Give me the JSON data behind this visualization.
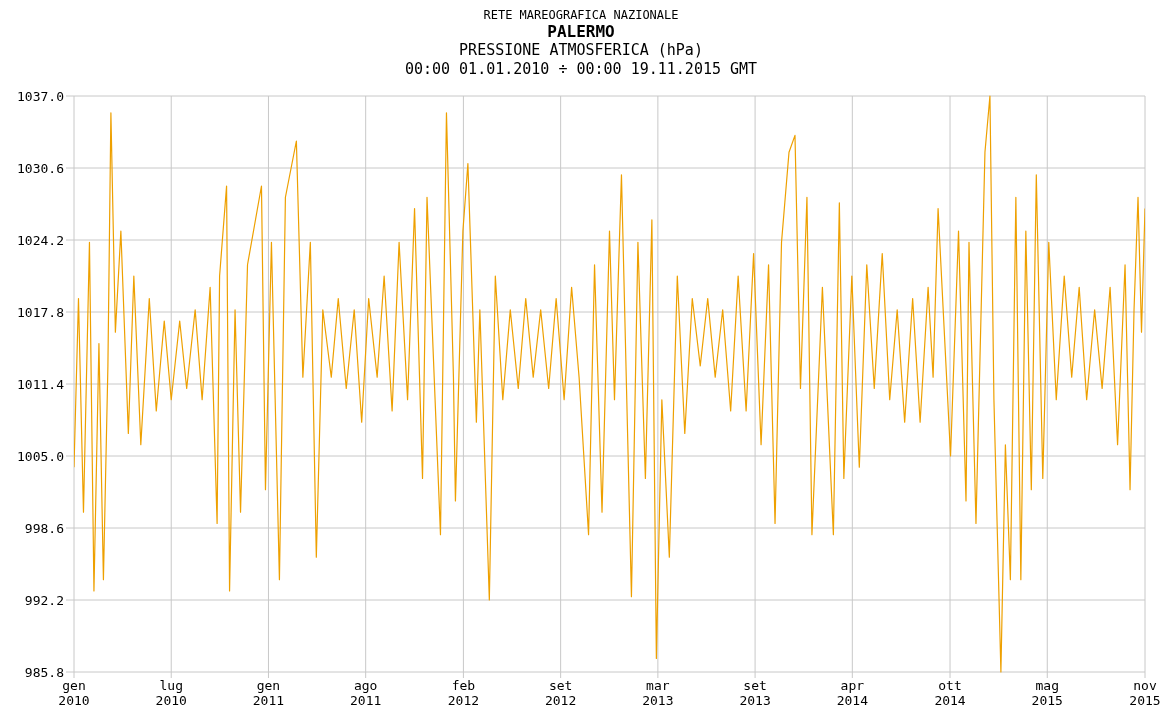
{
  "chart_data": {
    "type": "line",
    "title": "PALERMO",
    "subtitle": "PRESSIONE ATMOSFERICA (hPa)",
    "annotations": [
      "RETE MAREOGRAFICA NAZIONALE",
      "00:00 01.01.2010 ÷ 00:00 19.11.2015 GMT"
    ],
    "x": [
      "2010-01-01",
      "2010-01-10",
      "2010-01-20",
      "2010-02-01",
      "2010-02-10",
      "2010-02-20",
      "2010-03-01",
      "2010-03-10",
      "2010-03-16",
      "2010-03-25",
      "2010-04-05",
      "2010-04-20",
      "2010-05-01",
      "2010-05-15",
      "2010-06-01",
      "2010-06-15",
      "2010-07-01",
      "2010-07-15",
      "2010-08-01",
      "2010-08-15",
      "2010-09-01",
      "2010-09-15",
      "2010-10-01",
      "2010-10-15",
      "2010-10-20",
      "2010-11-03",
      "2010-11-09",
      "2010-11-20",
      "2010-12-01",
      "2010-12-15",
      "2011-01-12",
      "2011-01-20",
      "2011-02-01",
      "2011-02-17",
      "2011-03-01",
      "2011-03-23",
      "2011-04-05",
      "2011-04-20",
      "2011-05-02",
      "2011-05-15",
      "2011-06-01",
      "2011-06-15",
      "2011-07-01",
      "2011-07-17",
      "2011-08-01",
      "2011-08-15",
      "2011-09-01",
      "2011-09-15",
      "2011-10-01",
      "2011-10-15",
      "2011-11-01",
      "2011-11-15",
      "2011-12-01",
      "2011-12-10",
      "2012-01-06",
      "2012-01-18",
      "2012-02-01",
      "2012-02-05",
      "2012-02-20",
      "2012-03-01",
      "2012-03-18",
      "2012-03-25",
      "2012-04-13",
      "2012-04-25",
      "2012-05-10",
      "2012-05-25",
      "2012-06-10",
      "2012-06-25",
      "2012-07-10",
      "2012-07-25",
      "2012-08-10",
      "2012-08-25",
      "2012-09-10",
      "2012-09-25",
      "2012-10-10",
      "2012-10-29",
      "2012-11-10",
      "2012-11-25",
      "2012-12-10",
      "2012-12-20",
      "2013-01-03",
      "2013-01-23",
      "2013-02-05",
      "2013-02-20",
      "2013-03-05",
      "2013-03-14",
      "2013-03-25",
      "2013-04-09",
      "2013-04-25",
      "2013-05-10",
      "2013-05-25",
      "2013-06-10",
      "2013-06-25",
      "2013-07-10",
      "2013-07-25",
      "2013-08-10",
      "2013-08-25",
      "2013-09-10",
      "2013-09-25",
      "2013-10-10",
      "2013-10-25",
      "2013-11-07",
      "2013-11-20",
      "2013-12-05",
      "2013-12-17",
      "2013-12-28",
      "2014-01-10",
      "2014-01-20",
      "2014-02-10",
      "2014-03-04",
      "2014-03-16",
      "2014-03-25",
      "2014-04-10",
      "2014-04-25",
      "2014-05-10",
      "2014-05-25",
      "2014-06-10",
      "2014-06-25",
      "2014-07-10",
      "2014-07-25",
      "2014-08-10",
      "2014-08-25",
      "2014-09-10",
      "2014-09-20",
      "2014-09-30",
      "2014-10-25",
      "2014-11-10",
      "2014-11-25",
      "2014-12-01",
      "2014-12-15",
      "2015-01-02",
      "2015-01-12",
      "2015-01-20",
      "2015-02-03",
      "2015-02-12",
      "2015-02-22",
      "2015-03-05",
      "2015-03-15",
      "2015-03-25",
      "2015-04-05",
      "2015-04-15",
      "2015-04-28",
      "2015-05-10",
      "2015-05-25",
      "2015-06-10",
      "2015-06-25",
      "2015-07-10",
      "2015-07-25",
      "2015-08-10",
      "2015-08-25",
      "2015-09-10",
      "2015-09-25",
      "2015-10-10",
      "2015-10-20",
      "2015-10-28",
      "2015-11-05",
      "2015-11-12",
      "2015-11-19"
    ],
    "series": [
      {
        "color": "#eea000",
        "values": [
          1004,
          1019,
          1000,
          1024,
          993,
          1015,
          994,
          1013,
          1035.5,
          1016,
          1025,
          1007,
          1021,
          1006,
          1019,
          1009,
          1017,
          1010,
          1017,
          1011,
          1018,
          1010,
          1020,
          999,
          1021,
          1029,
          993,
          1018,
          1000,
          1022,
          1029,
          1002,
          1024,
          994,
          1028,
          1033,
          1012,
          1024,
          996,
          1018,
          1012,
          1019,
          1011,
          1018,
          1008,
          1019,
          1012,
          1021,
          1009,
          1024,
          1010,
          1027,
          1003,
          1028,
          998,
          1035.5,
          1012,
          1001,
          1025,
          1031,
          1008,
          1018,
          992.2,
          1021,
          1010,
          1018,
          1011,
          1019,
          1012,
          1018,
          1011,
          1019,
          1010,
          1020,
          1012,
          998,
          1022,
          1000,
          1025,
          1010,
          1030,
          992.5,
          1024,
          1003,
          1026,
          987,
          1010,
          996,
          1021,
          1007,
          1019,
          1013,
          1019,
          1012,
          1018,
          1009,
          1021,
          1009,
          1023,
          1006,
          1022,
          999,
          1024,
          1032,
          1033.5,
          1011,
          1028,
          998,
          1020,
          998,
          1027.5,
          1003,
          1021,
          1004,
          1022,
          1011,
          1023,
          1010,
          1018,
          1008,
          1019,
          1008,
          1020,
          1012,
          1027,
          1005,
          1025,
          1001,
          1024,
          999,
          1032,
          1037,
          1010,
          985.8,
          1006,
          994,
          1028,
          994,
          1025,
          1002,
          1030,
          1003,
          1024,
          1010,
          1021,
          1012,
          1020,
          1010,
          1018,
          1011,
          1020,
          1006,
          1022,
          1002,
          1018,
          1028,
          1016,
          1027
        ]
      }
    ],
    "xlim": [
      "2010-01-01",
      "2015-11-19"
    ],
    "xticks": [
      {
        "value": "2010-01-01",
        "label": "gen\n2010"
      },
      {
        "value": "2010-07-15",
        "label": "lug\n2010"
      },
      {
        "value": "2011-01-26",
        "label": "gen\n2011"
      },
      {
        "value": "2011-08-09",
        "label": "ago\n2011"
      },
      {
        "value": "2012-02-21",
        "label": "feb\n2012"
      },
      {
        "value": "2012-09-03",
        "label": "set\n2012"
      },
      {
        "value": "2013-03-17",
        "label": "mar\n2013"
      },
      {
        "value": "2013-09-28",
        "label": "set\n2013"
      },
      {
        "value": "2014-04-11",
        "label": "apr\n2014"
      },
      {
        "value": "2014-10-24",
        "label": "ott\n2014"
      },
      {
        "value": "2015-05-07",
        "label": "mag\n2015"
      },
      {
        "value": "2015-11-19",
        "label": "nov\n2015"
      }
    ],
    "ylim": [
      985.8,
      1037
    ],
    "yticks": [
      {
        "value": 985.8,
        "label": "985.8"
      },
      {
        "value": 992.2,
        "label": "992.2"
      },
      {
        "value": 998.6,
        "label": "998.6"
      },
      {
        "value": 1005,
        "label": "1005.0"
      },
      {
        "value": 1011.4,
        "label": "1011.4"
      },
      {
        "value": 1017.8,
        "label": "1017.8"
      },
      {
        "value": 1024.2,
        "label": "1024.2"
      },
      {
        "value": 1030.6,
        "label": "1030.6"
      },
      {
        "value": 1037,
        "label": "1037.0"
      }
    ],
    "grid": true,
    "marker": "none",
    "line_style": "solid"
  }
}
